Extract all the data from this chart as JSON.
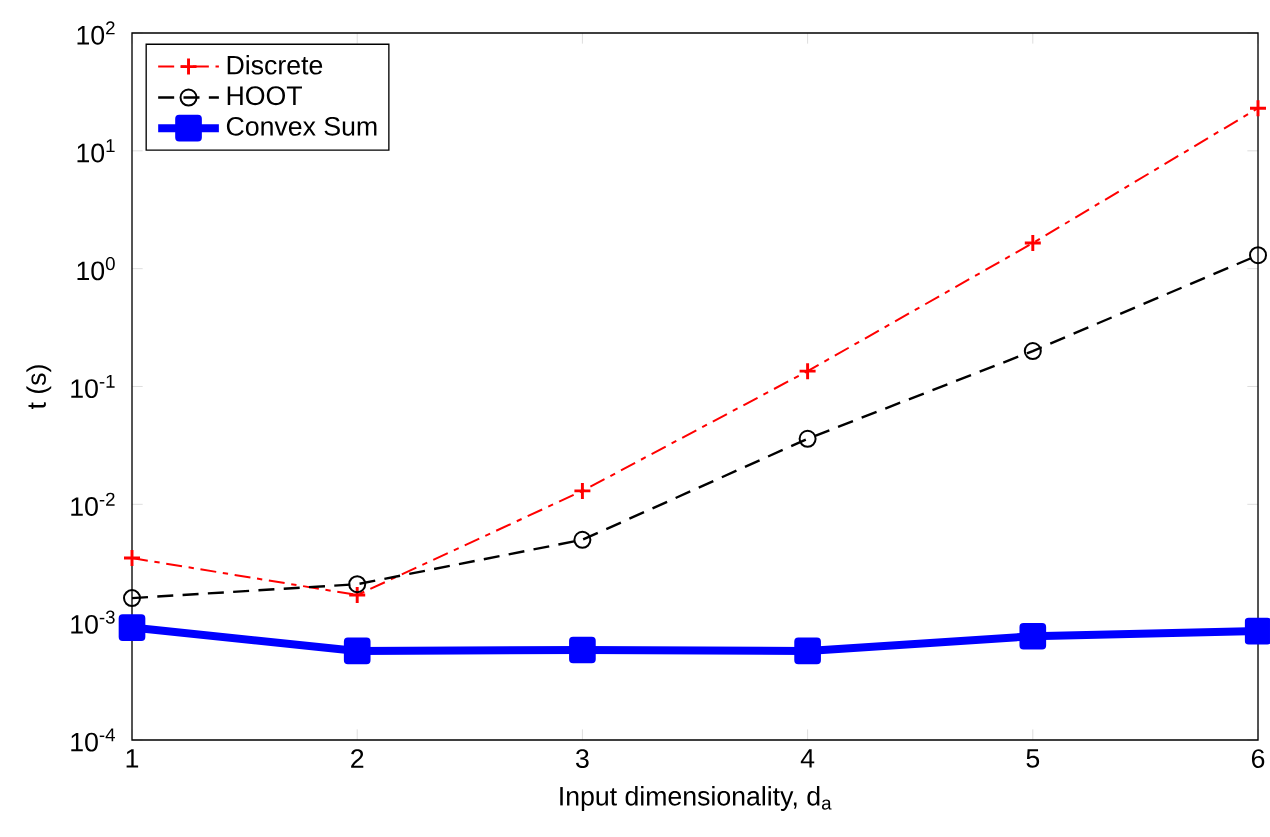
{
  "chart_data": {
    "type": "line",
    "xlabel": "Input dimensionality, d$_{a}$",
    "ylabel": "t (s)",
    "log": "y",
    "x": [
      1,
      2,
      3,
      4,
      5,
      6
    ],
    "xlim": [
      1,
      6
    ],
    "xticks": [
      1,
      2,
      3,
      4,
      5,
      6
    ],
    "ylim": [
      0.0001,
      100
    ],
    "yticks": [
      {
        "value": 0.0001,
        "label": "10$^{-4}$"
      },
      {
        "value": 0.001,
        "label": "10$^{-3}$"
      },
      {
        "value": 0.01,
        "label": "10$^{-2}$"
      },
      {
        "value": 0.1,
        "label": "10$^{-1}$"
      },
      {
        "value": 1,
        "label": "10$^{0}$"
      },
      {
        "value": 10,
        "label": "10$^{1}$"
      },
      {
        "value": 100,
        "label": "10$^{2}$"
      }
    ],
    "legend": "top left",
    "grid": false,
    "series": [
      {
        "name": "Discrete",
        "color": "#ff0000",
        "marker": "cross",
        "line_style": "dashdot",
        "values": [
          0.0035,
          0.0017,
          0.013,
          0.135,
          1.65,
          23
        ]
      },
      {
        "name": "HOOT",
        "color": "#000000",
        "marker": "circle",
        "line_style": "dashed",
        "values": [
          0.0016,
          0.0021,
          0.005,
          0.036,
          0.2,
          1.3
        ]
      },
      {
        "name": "Convex Sum",
        "color": "#0000ff",
        "marker": "square",
        "line_style": "solid",
        "values": [
          0.0009,
          0.00057,
          0.00058,
          0.00057,
          0.00076,
          0.00084
        ]
      }
    ]
  }
}
